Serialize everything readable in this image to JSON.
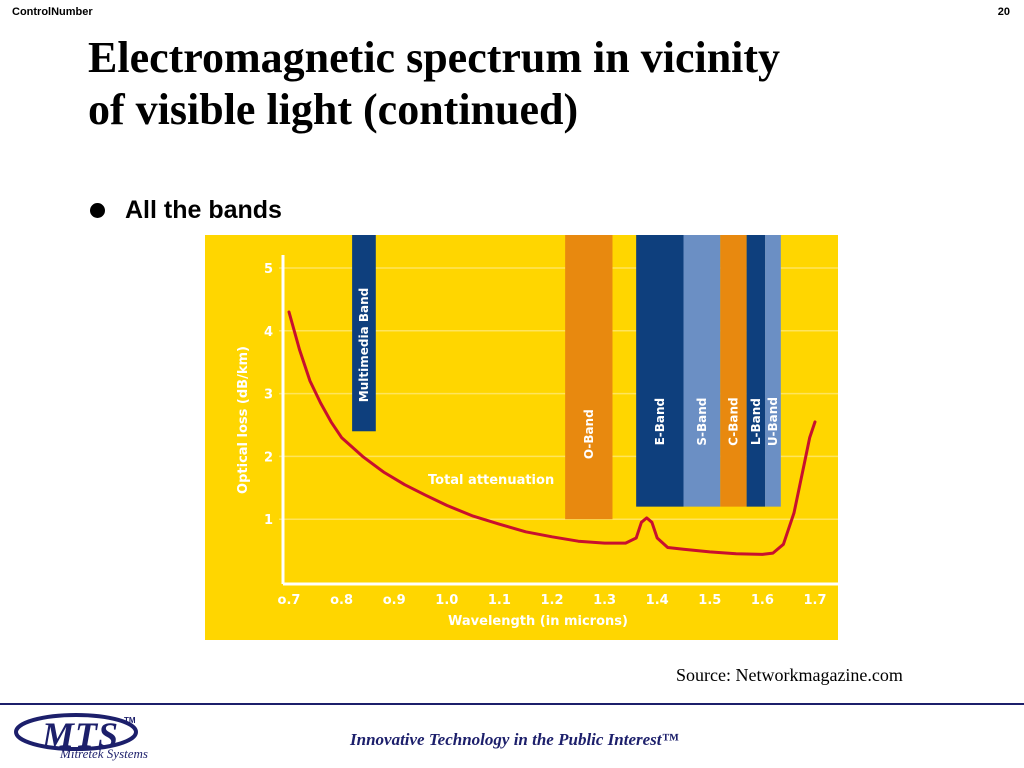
{
  "header": {
    "control_label": "ControlNumber",
    "page_number": "20"
  },
  "slide": {
    "title_line1": "Electromagnetic spectrum in vicinity",
    "title_line2": "of visible light (continued)",
    "bullet": "All the bands",
    "source": "Source: Networkmagazine.com"
  },
  "footer": {
    "logo_text": "MTS",
    "logo_tm": "TM",
    "logo_subtitle": "Mitretek Systems",
    "tagline": "Innovative Technology in the Public Interest™"
  },
  "colors": {
    "background": "#ffd600",
    "grid": "#ffe45c",
    "curve": "#c8102e",
    "dark_blue": "#0e3f7d",
    "orange": "#e8890f",
    "light_blue": "#6b8fc4",
    "axis_text": "#ffffff"
  },
  "chart_data": {
    "type": "line",
    "xlabel": "Wavelength (in microns)",
    "ylabel": "Optical loss (dB/km)",
    "xlim": [
      0.7,
      1.7
    ],
    "ylim": [
      0,
      5
    ],
    "x_ticks": [
      {
        "value": 0.7,
        "label": "o.7"
      },
      {
        "value": 0.8,
        "label": "o.8"
      },
      {
        "value": 0.9,
        "label": "o.9"
      },
      {
        "value": 1.0,
        "label": "1.0"
      },
      {
        "value": 1.1,
        "label": "1.1"
      },
      {
        "value": 1.2,
        "label": "1.2"
      },
      {
        "value": 1.3,
        "label": "1.3"
      },
      {
        "value": 1.4,
        "label": "1.4"
      },
      {
        "value": 1.5,
        "label": "1.5"
      },
      {
        "value": 1.6,
        "label": "1.6"
      },
      {
        "value": 1.7,
        "label": "1.7"
      }
    ],
    "y_ticks": [
      {
        "value": 1,
        "label": "1"
      },
      {
        "value": 2,
        "label": "2"
      },
      {
        "value": 3,
        "label": "3"
      },
      {
        "value": 4,
        "label": "4"
      },
      {
        "value": 5,
        "label": "5"
      }
    ],
    "grid": true,
    "series": [
      {
        "name": "Total attenuation",
        "points": [
          [
            0.7,
            4.3
          ],
          [
            0.72,
            3.7
          ],
          [
            0.74,
            3.2
          ],
          [
            0.76,
            2.85
          ],
          [
            0.78,
            2.55
          ],
          [
            0.8,
            2.3
          ],
          [
            0.84,
            2.0
          ],
          [
            0.88,
            1.75
          ],
          [
            0.92,
            1.55
          ],
          [
            0.96,
            1.38
          ],
          [
            1.0,
            1.22
          ],
          [
            1.05,
            1.05
          ],
          [
            1.1,
            0.92
          ],
          [
            1.15,
            0.8
          ],
          [
            1.2,
            0.72
          ],
          [
            1.25,
            0.65
          ],
          [
            1.3,
            0.62
          ],
          [
            1.34,
            0.62
          ],
          [
            1.36,
            0.7
          ],
          [
            1.37,
            0.95
          ],
          [
            1.38,
            1.02
          ],
          [
            1.39,
            0.95
          ],
          [
            1.4,
            0.7
          ],
          [
            1.42,
            0.55
          ],
          [
            1.45,
            0.52
          ],
          [
            1.5,
            0.48
          ],
          [
            1.55,
            0.45
          ],
          [
            1.6,
            0.44
          ],
          [
            1.62,
            0.46
          ],
          [
            1.64,
            0.6
          ],
          [
            1.66,
            1.1
          ],
          [
            1.68,
            1.9
          ],
          [
            1.69,
            2.3
          ],
          [
            1.7,
            2.55
          ]
        ]
      }
    ],
    "bands": [
      {
        "label": "Multimedia Band",
        "x0": 0.82,
        "x1": 0.865,
        "y0": 2.4,
        "color": "dark_blue"
      },
      {
        "label": "O-Band",
        "x0": 1.225,
        "x1": 1.315,
        "y0": 1.0,
        "color": "orange"
      },
      {
        "label": "E-Band",
        "x0": 1.36,
        "x1": 1.45,
        "y0": 1.2,
        "color": "dark_blue"
      },
      {
        "label": "S-Band",
        "x0": 1.45,
        "x1": 1.52,
        "y0": 1.2,
        "color": "light_blue"
      },
      {
        "label": "C-Band",
        "x0": 1.52,
        "x1": 1.57,
        "y0": 1.2,
        "color": "orange"
      },
      {
        "label": "L-Band",
        "x0": 1.57,
        "x1": 1.605,
        "y0": 1.2,
        "color": "dark_blue"
      },
      {
        "label": "U-Band",
        "x0": 1.605,
        "x1": 1.635,
        "y0": 1.2,
        "color": "light_blue"
      }
    ]
  }
}
